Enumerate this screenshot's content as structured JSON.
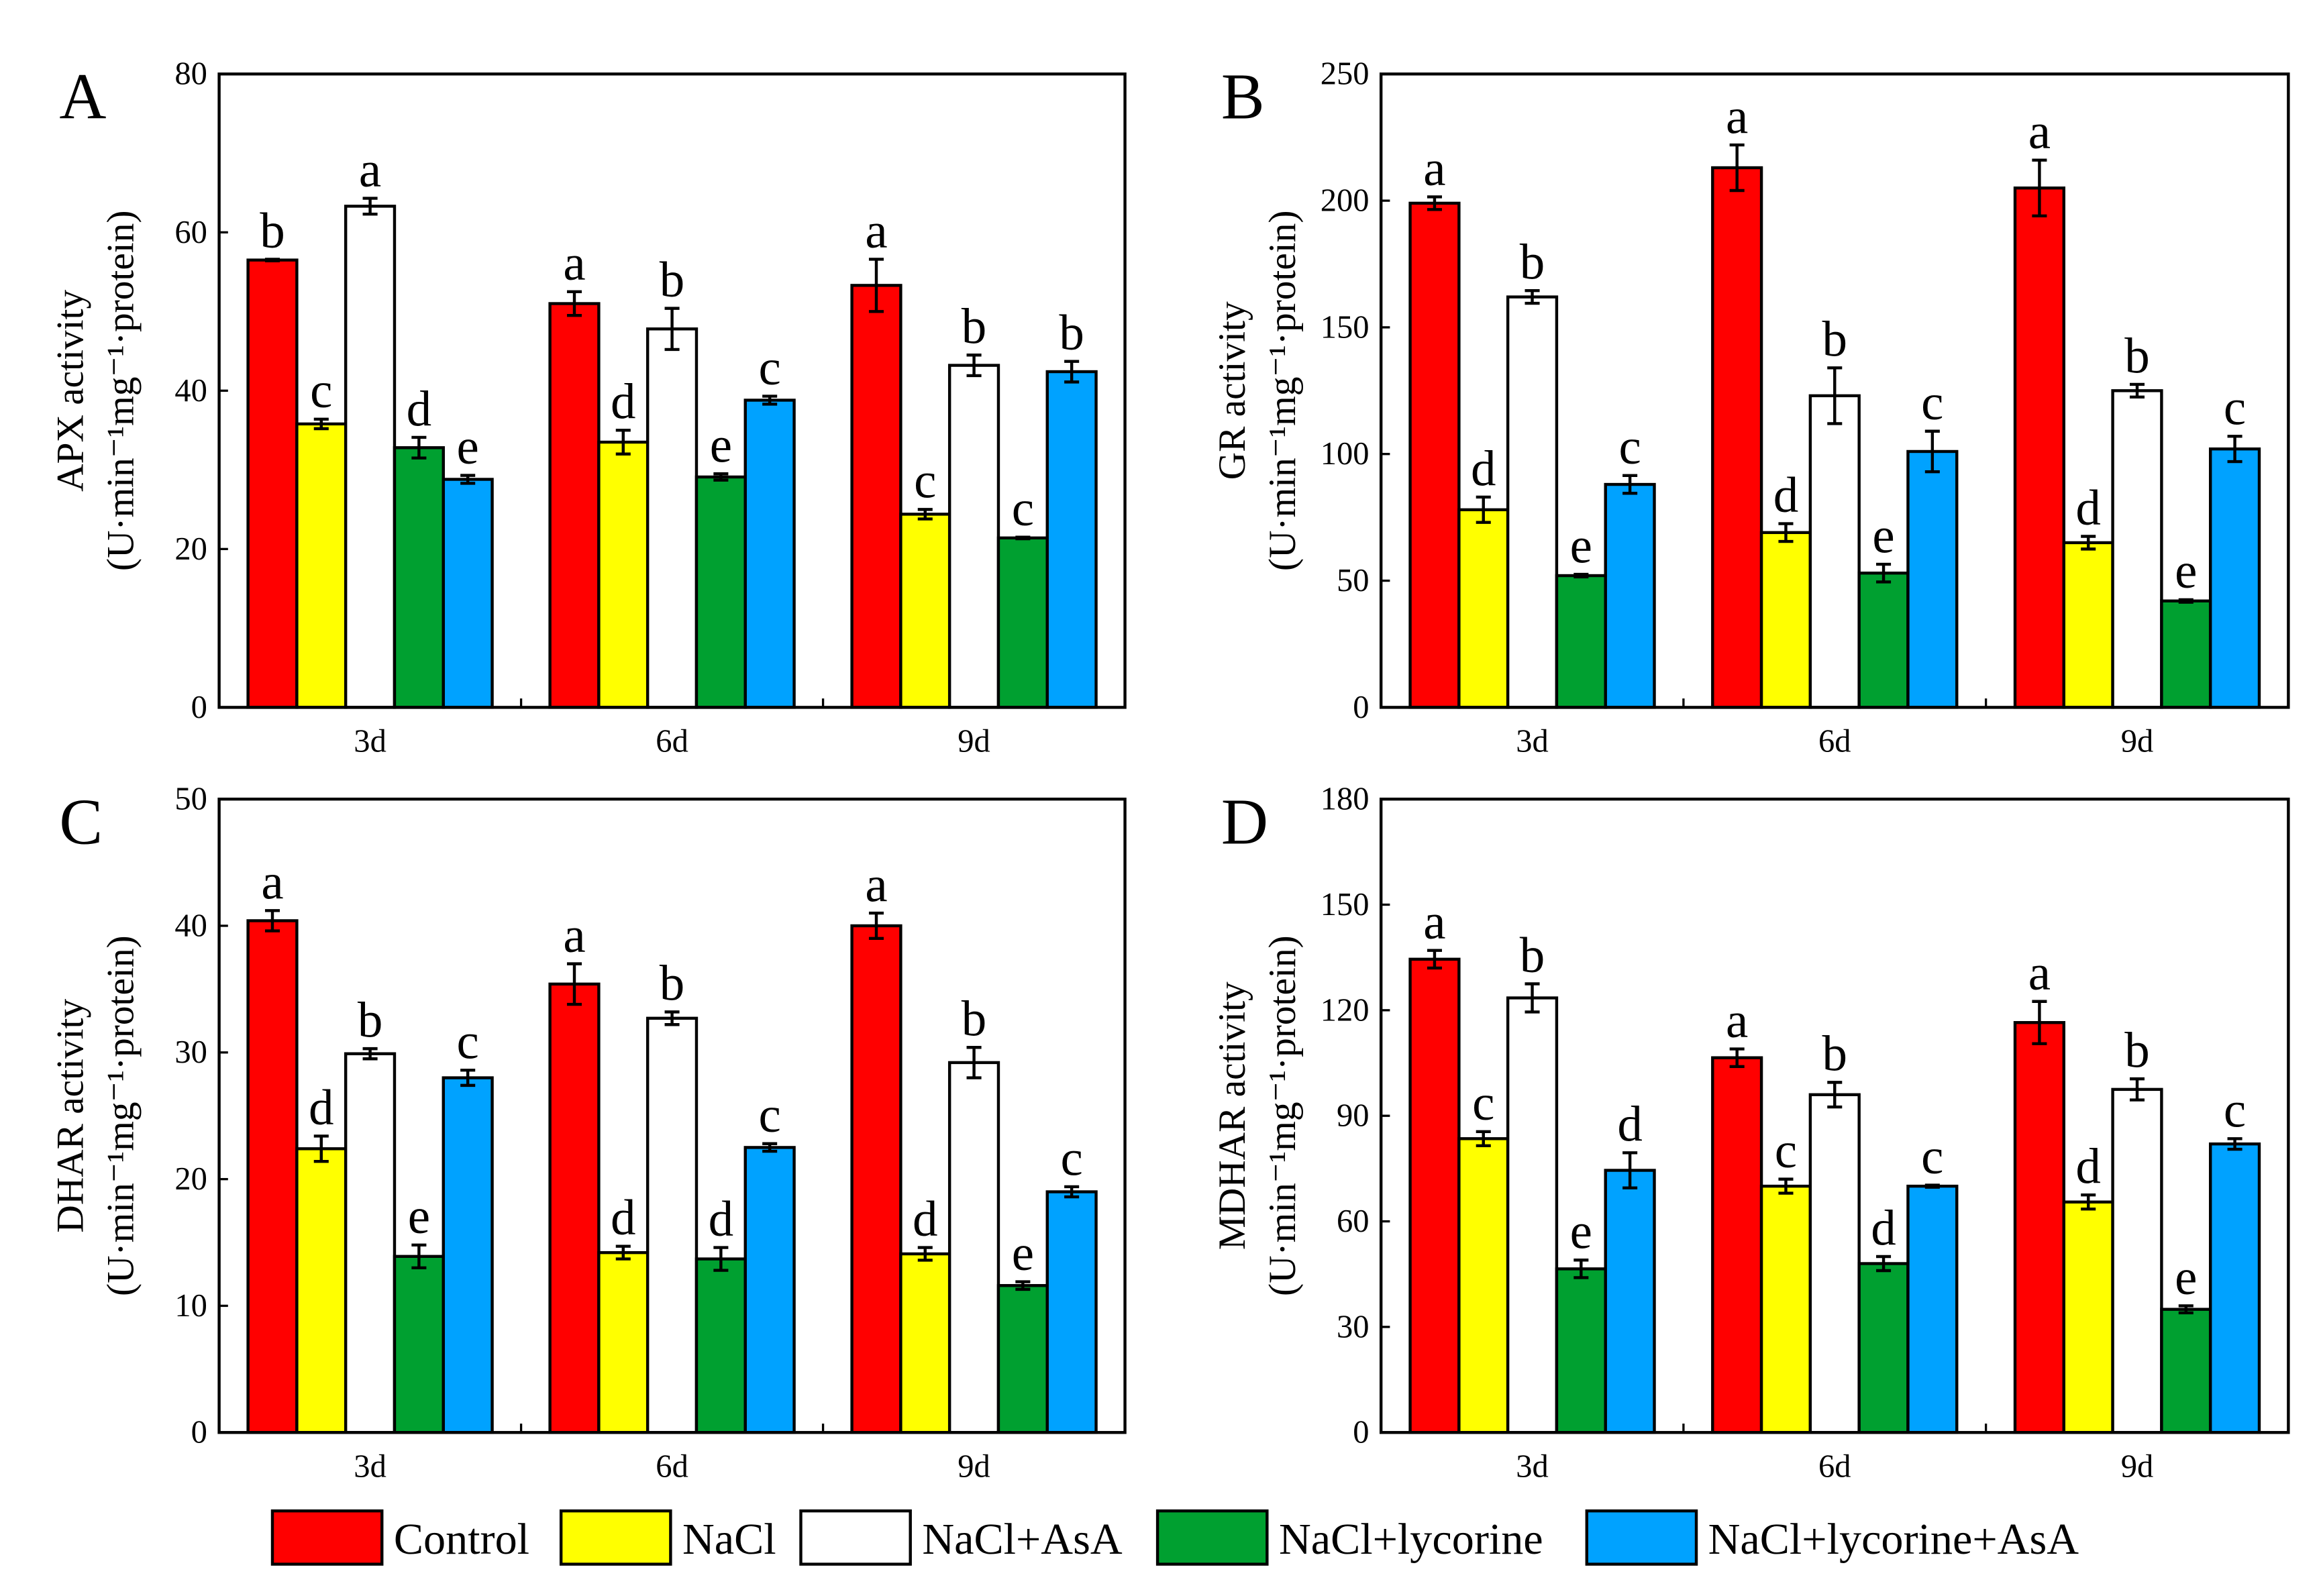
{
  "legend": [
    "Control",
    "NaCl",
    "NaCl+AsA",
    "NaCl+lycorine",
    "NaCl+lycorine+AsA"
  ],
  "colors": [
    "#ff0000",
    "#ffff00",
    "#ffffff",
    "#00a030",
    "#00a2ff"
  ],
  "chart_data": [
    {
      "type": "bar",
      "panel": "A",
      "ylabel": "APX activity",
      "ylabel_unit": "(U·min⁻¹mg⁻¹·protein)",
      "categories": [
        "3d",
        "6d",
        "9d"
      ],
      "ylim": [
        0,
        80
      ],
      "yticks": [
        0,
        20,
        40,
        60,
        80
      ],
      "series": [
        {
          "name": "Control",
          "values": [
            56.5,
            51.0,
            53.3
          ],
          "errors": [
            0.1,
            1.5,
            3.3
          ],
          "letters": [
            "b",
            "a",
            "a"
          ]
        },
        {
          "name": "NaCl",
          "values": [
            35.8,
            33.5,
            24.4
          ],
          "errors": [
            0.6,
            1.5,
            0.6
          ],
          "letters": [
            "c",
            "d",
            "c"
          ]
        },
        {
          "name": "NaCl+AsA",
          "values": [
            63.3,
            47.8,
            43.2
          ],
          "errors": [
            1.0,
            2.6,
            1.3
          ],
          "letters": [
            "a",
            "b",
            "b"
          ]
        },
        {
          "name": "NaCl+lycorine",
          "values": [
            32.8,
            29.1,
            21.4
          ],
          "errors": [
            1.3,
            0.4,
            0.1
          ],
          "letters": [
            "d",
            "e",
            "c"
          ]
        },
        {
          "name": "NaCl+lycorine+AsA",
          "values": [
            28.8,
            38.8,
            42.4
          ],
          "errors": [
            0.5,
            0.5,
            1.3
          ],
          "letters": [
            "e",
            "c",
            "b"
          ]
        }
      ]
    },
    {
      "type": "bar",
      "panel": "B",
      "ylabel": "GR activity",
      "ylabel_unit": "(U·min⁻¹mg⁻¹·protein)",
      "categories": [
        "3d",
        "6d",
        "9d"
      ],
      "ylim": [
        0,
        250
      ],
      "yticks": [
        0,
        50,
        100,
        150,
        200,
        250
      ],
      "series": [
        {
          "name": "Control",
          "values": [
            199,
            213,
            205
          ],
          "errors": [
            2.5,
            9,
            11
          ],
          "letters": [
            "a",
            "a",
            "a"
          ]
        },
        {
          "name": "NaCl",
          "values": [
            78,
            69,
            65
          ],
          "errors": [
            5,
            3.5,
            2.5
          ],
          "letters": [
            "d",
            "d",
            "d"
          ]
        },
        {
          "name": "NaCl+AsA",
          "values": [
            162,
            123,
            125
          ],
          "errors": [
            2.5,
            11,
            2.5
          ],
          "letters": [
            "b",
            "b",
            "b"
          ]
        },
        {
          "name": "NaCl+lycorine",
          "values": [
            52,
            53,
            42
          ],
          "errors": [
            0.5,
            3.5,
            0.5
          ],
          "letters": [
            "e",
            "e",
            "e"
          ]
        },
        {
          "name": "NaCl+lycorine+AsA",
          "values": [
            88,
            101,
            102
          ],
          "errors": [
            3.5,
            8,
            5
          ],
          "letters": [
            "c",
            "c",
            "c"
          ]
        }
      ]
    },
    {
      "type": "bar",
      "panel": "C",
      "ylabel": "DHAR activity",
      "ylabel_unit": "(U·min⁻¹mg⁻¹·protein)",
      "categories": [
        "3d",
        "6d",
        "9d"
      ],
      "ylim": [
        0,
        50
      ],
      "yticks": [
        0,
        10,
        20,
        30,
        40,
        50
      ],
      "series": [
        {
          "name": "Control",
          "values": [
            40.4,
            35.4,
            40.0
          ],
          "errors": [
            0.8,
            1.6,
            1.0
          ],
          "letters": [
            "a",
            "a",
            "a"
          ]
        },
        {
          "name": "NaCl",
          "values": [
            22.4,
            14.2,
            14.1
          ],
          "errors": [
            1.0,
            0.5,
            0.5
          ],
          "letters": [
            "d",
            "d",
            "d"
          ]
        },
        {
          "name": "NaCl+AsA",
          "values": [
            29.9,
            32.7,
            29.2
          ],
          "errors": [
            0.4,
            0.5,
            1.2
          ],
          "letters": [
            "b",
            "b",
            "b"
          ]
        },
        {
          "name": "NaCl+lycorine",
          "values": [
            13.9,
            13.7,
            11.6
          ],
          "errors": [
            0.9,
            0.9,
            0.3
          ],
          "letters": [
            "e",
            "d",
            "e"
          ]
        },
        {
          "name": "NaCl+lycorine+AsA",
          "values": [
            28.0,
            22.5,
            19.0
          ],
          "errors": [
            0.6,
            0.3,
            0.4
          ],
          "letters": [
            "c",
            "c",
            "c"
          ]
        }
      ]
    },
    {
      "type": "bar",
      "panel": "D",
      "ylabel": "MDHAR activity",
      "ylabel_unit": "(U·min⁻¹mg⁻¹·protein)",
      "categories": [
        "3d",
        "6d",
        "9d"
      ],
      "ylim": [
        0,
        180
      ],
      "yticks": [
        0,
        30,
        60,
        90,
        120,
        150,
        180
      ],
      "series": [
        {
          "name": "Control",
          "values": [
            134.5,
            106.5,
            116.5
          ],
          "errors": [
            2.5,
            2.5,
            6
          ],
          "letters": [
            "a",
            "a",
            "a"
          ]
        },
        {
          "name": "NaCl",
          "values": [
            83.5,
            70,
            65.5
          ],
          "errors": [
            2,
            2,
            2
          ],
          "letters": [
            "c",
            "c",
            "d"
          ]
        },
        {
          "name": "NaCl+AsA",
          "values": [
            123.5,
            96,
            97.5
          ],
          "errors": [
            4,
            3.5,
            3
          ],
          "letters": [
            "b",
            "b",
            "b"
          ]
        },
        {
          "name": "NaCl+lycorine",
          "values": [
            46.5,
            48,
            35
          ],
          "errors": [
            2.5,
            2,
            1
          ],
          "letters": [
            "e",
            "d",
            "e"
          ]
        },
        {
          "name": "NaCl+lycorine+AsA",
          "values": [
            74.5,
            70,
            82
          ],
          "errors": [
            5,
            0.3,
            1.5
          ],
          "letters": [
            "d",
            "c",
            "c"
          ]
        }
      ]
    }
  ]
}
